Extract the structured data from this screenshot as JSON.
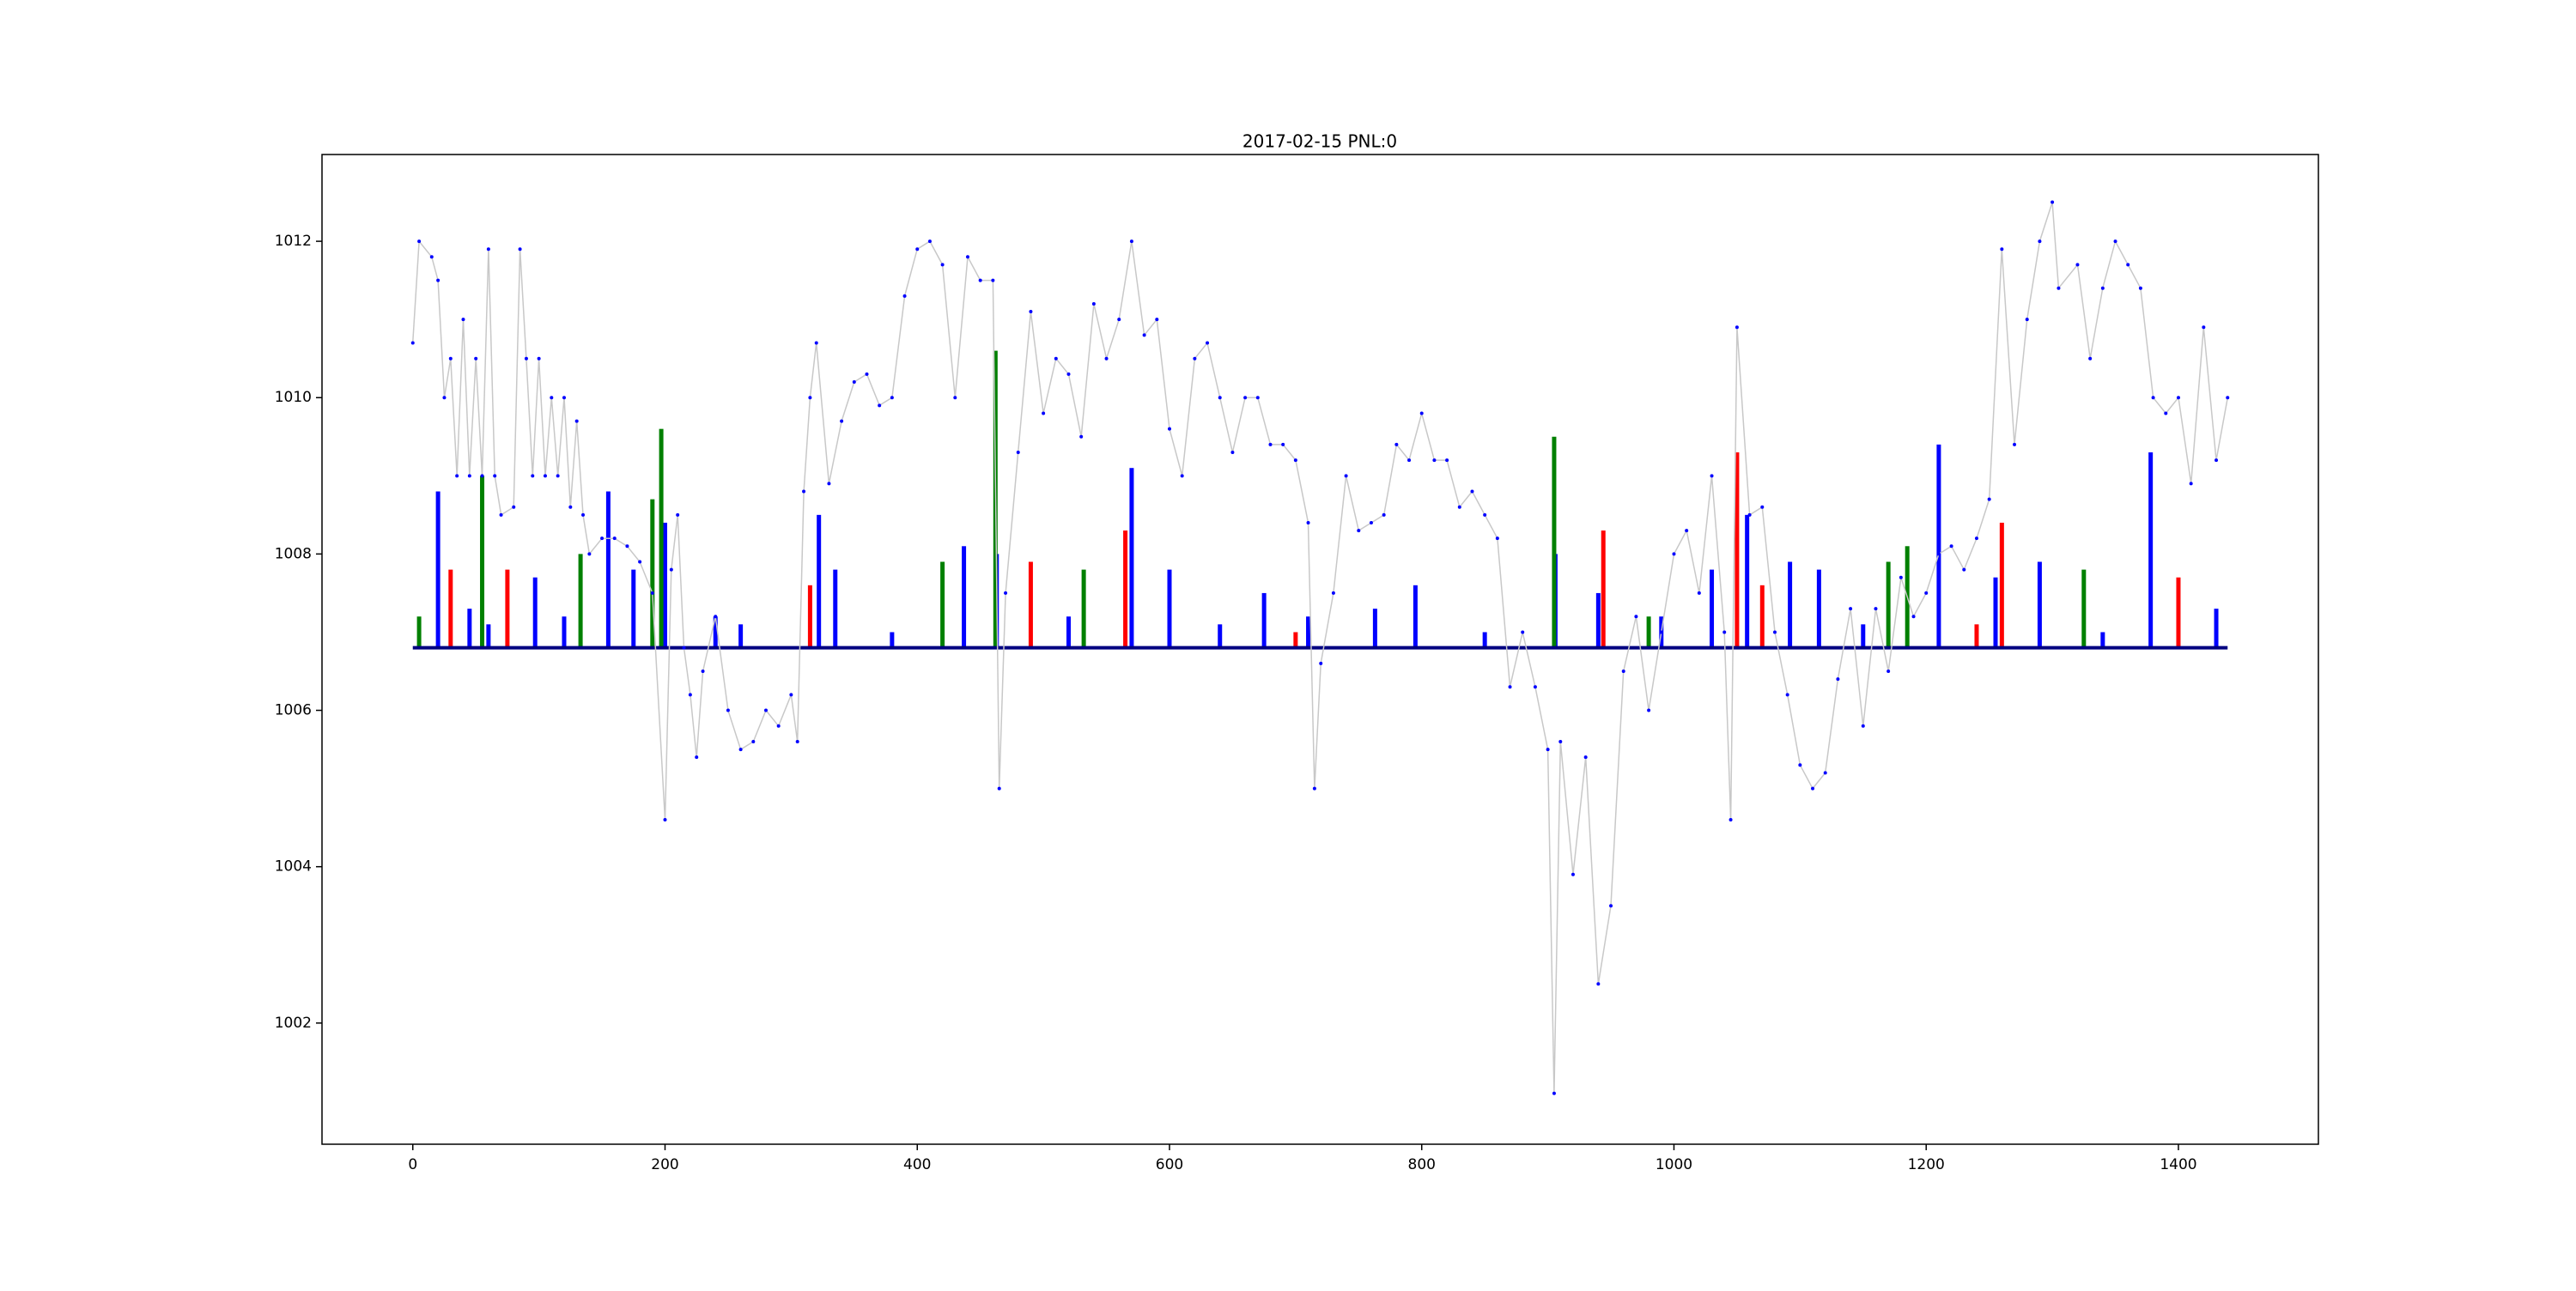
{
  "chart_data": {
    "type": "line",
    "title": "2017-02-15 PNL:0",
    "x": [
      0,
      5,
      15,
      20,
      25,
      30,
      35,
      40,
      45,
      50,
      55,
      60,
      65,
      70,
      80,
      85,
      90,
      95,
      100,
      105,
      110,
      115,
      120,
      125,
      130,
      135,
      140,
      150,
      160,
      170,
      180,
      190,
      200,
      205,
      210,
      215,
      220,
      225,
      230,
      240,
      250,
      260,
      270,
      280,
      290,
      300,
      305,
      310,
      315,
      320,
      330,
      340,
      350,
      360,
      370,
      380,
      390,
      400,
      410,
      420,
      430,
      440,
      450,
      460,
      465,
      470,
      480,
      490,
      500,
      510,
      520,
      530,
      540,
      550,
      560,
      570,
      580,
      590,
      600,
      610,
      620,
      630,
      640,
      650,
      660,
      670,
      680,
      690,
      700,
      710,
      715,
      720,
      730,
      740,
      750,
      760,
      770,
      780,
      790,
      800,
      810,
      820,
      830,
      840,
      850,
      860,
      870,
      880,
      890,
      900,
      905,
      910,
      920,
      930,
      940,
      950,
      960,
      970,
      980,
      990,
      1000,
      1010,
      1020,
      1030,
      1040,
      1045,
      1050,
      1060,
      1070,
      1080,
      1090,
      1100,
      1110,
      1120,
      1130,
      1140,
      1150,
      1160,
      1170,
      1180,
      1190,
      1200,
      1210,
      1220,
      1230,
      1240,
      1250,
      1260,
      1270,
      1280,
      1290,
      1300,
      1305,
      1320,
      1330,
      1340,
      1350,
      1360,
      1370,
      1380,
      1390,
      1400,
      1410,
      1420,
      1430,
      1439
    ],
    "values": [
      1010.7,
      1012,
      1011.8,
      1011.5,
      1010,
      1010.5,
      1009,
      1011,
      1009,
      1010.5,
      1009,
      1011.9,
      1009,
      1008.5,
      1008.6,
      1011.9,
      1010.5,
      1009,
      1010.5,
      1009,
      1010,
      1009,
      1010,
      1008.6,
      1009.7,
      1008.5,
      1008,
      1008.2,
      1008.2,
      1008.1,
      1007.9,
      1007.5,
      1004.6,
      1007.8,
      1008.5,
      1006.8,
      1006.2,
      1005.4,
      1006.5,
      1007.2,
      1006,
      1005.5,
      1005.6,
      1006,
      1005.8,
      1006.2,
      1005.6,
      1008.8,
      1010,
      1010.7,
      1008.9,
      1009.7,
      1010.2,
      1010.3,
      1009.9,
      1010,
      1011.3,
      1011.9,
      1012,
      1011.7,
      1010,
      1011.8,
      1011.5,
      1011.5,
      1005,
      1007.5,
      1009.3,
      1011.1,
      1009.8,
      1010.5,
      1010.3,
      1009.5,
      1011.2,
      1010.5,
      1011,
      1012,
      1010.8,
      1011,
      1009.6,
      1009,
      1010.5,
      1010.7,
      1010,
      1009.3,
      1010,
      1010,
      1009.4,
      1009.4,
      1009.2,
      1008.4,
      1005,
      1006.6,
      1007.5,
      1009,
      1008.3,
      1008.4,
      1008.5,
      1009.4,
      1009.2,
      1009.8,
      1009.2,
      1009.2,
      1008.6,
      1008.8,
      1008.5,
      1008.2,
      1006.3,
      1007,
      1006.3,
      1005.5,
      1001.1,
      1005.6,
      1003.9,
      1005.4,
      1002.5,
      1003.5,
      1006.5,
      1007.2,
      1006,
      1007,
      1008,
      1008.3,
      1007.5,
      1009,
      1007,
      1004.6,
      1010.9,
      1008.5,
      1008.6,
      1007,
      1006.2,
      1005.3,
      1005,
      1005.2,
      1006.4,
      1007.3,
      1005.8,
      1007.3,
      1006.5,
      1007.7,
      1007.2,
      1007.5,
      1008,
      1008.1,
      1007.8,
      1008.2,
      1008.7,
      1011.9,
      1009.4,
      1011,
      1012,
      1012.5,
      1011.4,
      1011.7,
      1010.5,
      1011.4,
      1012,
      1011.7,
      1011.4,
      1010,
      1009.8,
      1010,
      1008.9,
      1010.9,
      1009.2,
      1010
    ],
    "color": "#c8c8c8",
    "marker_color": "#0000ff",
    "bar_bottom": 1006.8,
    "bars": [
      {
        "color": "#0000ff",
        "x": [
          20,
          45,
          97,
          155,
          175,
          200,
          240,
          322,
          335,
          437,
          463,
          570,
          600,
          675,
          710,
          763,
          795,
          906,
          940,
          1030,
          1058,
          1092,
          1115,
          1210,
          1255,
          1290,
          1378,
          1430,
          60,
          120,
          260,
          380,
          520,
          640,
          850,
          990,
          1150,
          1340
        ],
        "values": [
          1008.8,
          1007.3,
          1007.7,
          1008.8,
          1007.8,
          1008.4,
          1007.2,
          1008.5,
          1007.8,
          1008.1,
          1008,
          1009.1,
          1007.8,
          1007.5,
          1007.2,
          1007.3,
          1007.6,
          1008,
          1007.5,
          1007.8,
          1008.5,
          1007.9,
          1007.8,
          1009.4,
          1007.7,
          1007.9,
          1009.3,
          1007.3,
          1007.1,
          1007.2,
          1007.1,
          1007,
          1007.2,
          1007.1,
          1007,
          1007.2,
          1007.1,
          1007
        ]
      },
      {
        "color": "#008000",
        "x": [
          5,
          55,
          133,
          190,
          197,
          420,
          462,
          532,
          905,
          1170,
          1185,
          1325,
          980
        ],
        "values": [
          1007.2,
          1009,
          1008,
          1008.7,
          1009.6,
          1007.9,
          1010.6,
          1007.8,
          1009.5,
          1007.9,
          1008.1,
          1007.8,
          1007.2
        ]
      },
      {
        "color": "#ff0000",
        "x": [
          30,
          75,
          315,
          490,
          565,
          944,
          1050,
          1070,
          1260,
          1400,
          700,
          1240
        ],
        "values": [
          1007.8,
          1007.8,
          1007.6,
          1007.9,
          1008.3,
          1008.3,
          1009.3,
          1007.6,
          1008.4,
          1007.7,
          1007,
          1007.1
        ]
      }
    ],
    "xlim": [
      -72,
      1511
    ],
    "ylim": [
      1000.45,
      1013.11
    ],
    "xticks": [
      0,
      200,
      400,
      600,
      800,
      1000,
      1200,
      1400
    ],
    "yticks": [
      1002,
      1004,
      1006,
      1008,
      1010,
      1012
    ]
  }
}
